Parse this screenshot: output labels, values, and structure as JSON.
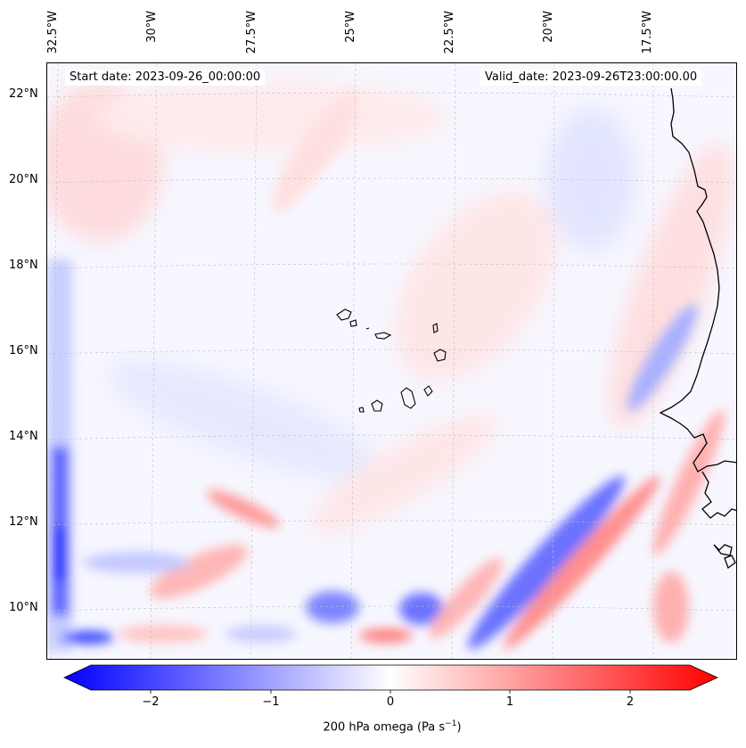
{
  "map": {
    "variable_label": "200 hPa omega (Pa s",
    "variable_unit_exp": "−1",
    "variable_label_end": ")",
    "start_date_text": "Start date: 2023-09-26_00:00:00",
    "valid_date_text": "Valid_date: 2023-09-26T23:00:00.00",
    "lon_labels": [
      "32.5°W",
      "30°W",
      "27.5°W",
      "25°W",
      "22.5°W",
      "20°W",
      "17.5°W"
    ],
    "lat_labels": [
      "22°N",
      "20°N",
      "18°N",
      "16°N",
      "14°N",
      "12°N",
      "10°N"
    ],
    "colorbar": {
      "ticks": [
        "−2",
        "−1",
        "0",
        "1",
        "2"
      ],
      "min": -2.7,
      "max": 2.7,
      "colors": {
        "negative": "#0000ff",
        "zero": "#ffffff",
        "positive": "#ff0000"
      }
    },
    "gridlines": true,
    "coastline_color": "#000000"
  }
}
